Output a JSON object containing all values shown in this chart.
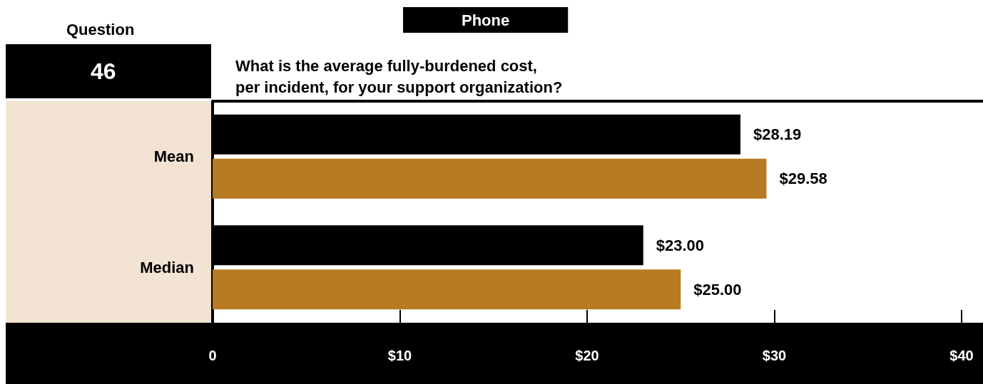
{
  "chart_data": {
    "type": "bar",
    "orientation": "horizontal",
    "title": "What is the average fully-burdened cost,\nper incident, for your support organization?",
    "subtitle": "Phone",
    "annotations": [
      "Question",
      "46"
    ],
    "categories": [
      "Mean",
      "Median"
    ],
    "series": [
      {
        "color": "#000000",
        "values": [
          28.19,
          23.0
        ],
        "value_labels": [
          "$28.19",
          "$23.00"
        ]
      },
      {
        "color": "#b87a22",
        "values": [
          29.58,
          25.0
        ],
        "value_labels": [
          "$29.58",
          "$25.00"
        ]
      }
    ],
    "xlim": [
      0,
      40
    ],
    "xticks": [
      0,
      {
        "value": 10,
        "label": "$10"
      },
      {
        "value": 20,
        "label": "$20"
      },
      {
        "value": 30,
        "label": "$30"
      },
      {
        "value": 40,
        "label": "$40"
      }
    ],
    "grid": false
  }
}
